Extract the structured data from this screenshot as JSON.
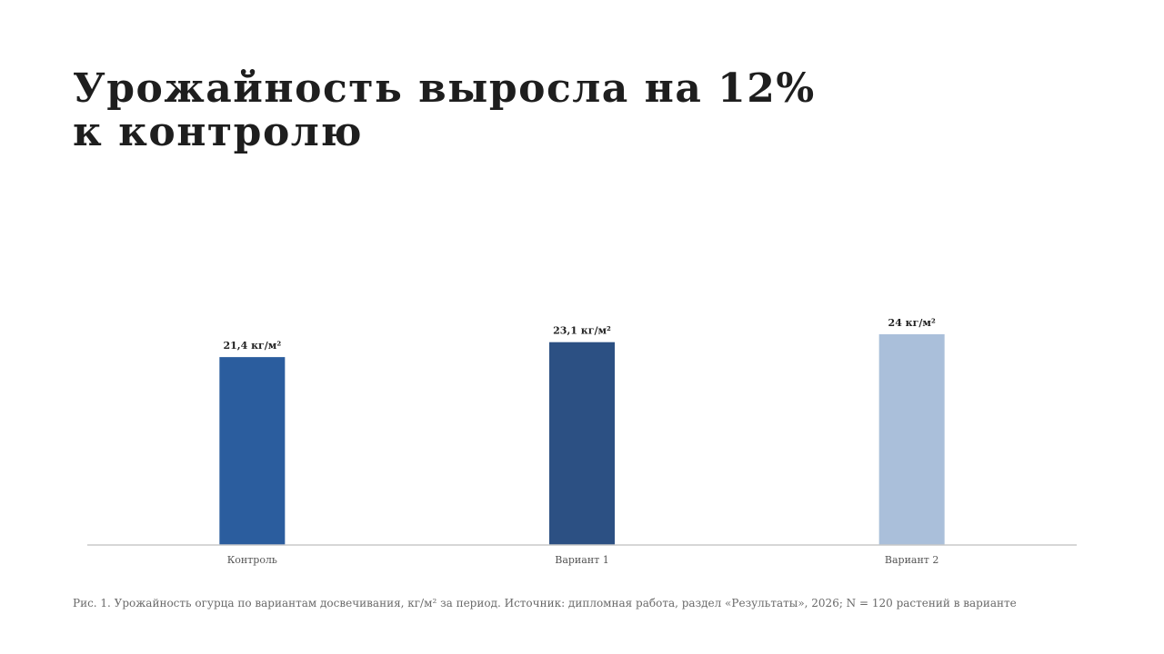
{
  "title": {
    "line1": "Урожайность выросла на 12%",
    "line2": "к контролю"
  },
  "caption": "Рис. 1. Урожайность огурца по вариантам досвечивания, кг/м² за период. Источник: дипломная работа, раздел «Результаты», 2026; N = 120 растений в варианте",
  "chart_data": {
    "type": "bar",
    "categories": [
      "Контроль",
      "Вариант 1",
      "Вариант 2"
    ],
    "values": [
      21.4,
      23.1,
      24
    ],
    "value_labels": [
      "21,4 кг/м²",
      "23,1 кг/м²",
      "24 кг/м²"
    ],
    "colors": [
      "#2b5d9e",
      "#2c5083",
      "#aabfda"
    ],
    "title": "Урожайность выросла на 12% к контролю",
    "xlabel": "",
    "ylabel": "",
    "ylim": [
      0,
      24
    ],
    "grid": false,
    "legend": "none"
  }
}
